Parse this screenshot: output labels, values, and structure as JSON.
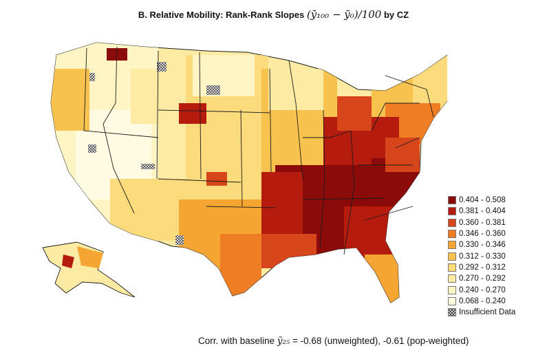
{
  "title": {
    "prefix": "B. Relative Mobility: Rank-Rank Slopes",
    "formula": "(ȳ₁₀₀ − ȳ₀)/100",
    "suffix": "by CZ"
  },
  "legend": {
    "items": [
      {
        "label": "0.404 - 0.508",
        "color": "#8b0a0a"
      },
      {
        "label": "0.381 - 0.404",
        "color": "#b51c0d"
      },
      {
        "label": "0.360 - 0.381",
        "color": "#d7461a"
      },
      {
        "label": "0.346 - 0.360",
        "color": "#ee7d24"
      },
      {
        "label": "0.330 - 0.346",
        "color": "#f5a531"
      },
      {
        "label": "0.312 - 0.330",
        "color": "#f8c24e"
      },
      {
        "label": "0.292 - 0.312",
        "color": "#fbdb7c"
      },
      {
        "label": "0.270 - 0.292",
        "color": "#fdeaa3"
      },
      {
        "label": "0.240 - 0.270",
        "color": "#fef4c4"
      },
      {
        "label": "0.068 - 0.240",
        "color": "#fffbe2"
      }
    ],
    "insufficient_label": "Insufficient Data"
  },
  "footer": {
    "prefix": "Corr. with baseline",
    "symbol": "ȳ₂₅",
    "suffix": "= -0.68 (unweighted),  -0.61 (pop-weighted)"
  },
  "colors": {
    "state_border": "#1a1a1a",
    "cz_border": "#b9b9b9"
  }
}
